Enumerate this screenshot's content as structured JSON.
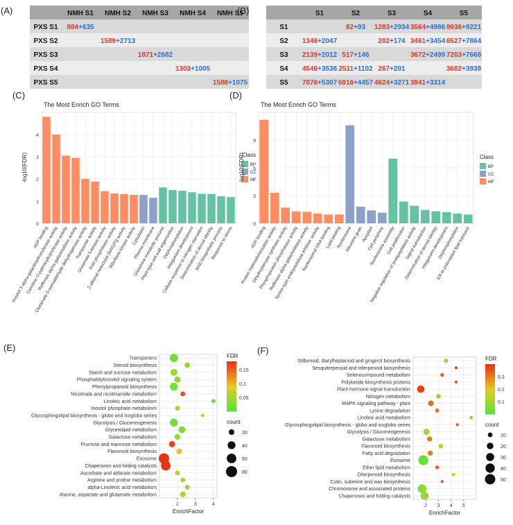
{
  "colors": {
    "red": "#e8352a",
    "blue": "#2a6fd6",
    "table_header": "#a6a6a6",
    "row_dark": "#d9d9d9",
    "row_light": "#ededed",
    "bp": "#66c2a5",
    "cc": "#8da0cb",
    "mf": "#fc8d62",
    "grid_bg": "#ffffff",
    "grid_line": "#ebebeb"
  },
  "chart_data": [
    {
      "panel": "(A)",
      "type": "table",
      "columns": [
        "",
        "NMH S1",
        "NMH S2",
        "NMH S3",
        "NMH S4",
        "NMH S5"
      ],
      "rows": [
        {
          "label": "PXS S1",
          "cells": [
            {
              "col": 1,
              "a": "884",
              "b": "635"
            }
          ]
        },
        {
          "label": "PXS S2",
          "cells": [
            {
              "col": 2,
              "a": "1589",
              "b": "2713"
            }
          ]
        },
        {
          "label": "PXS S3",
          "cells": [
            {
              "col": 3,
              "a": "1871",
              "b": "2682"
            }
          ]
        },
        {
          "label": "PXS S4",
          "cells": [
            {
              "col": 4,
              "a": "1303",
              "b": "1005"
            }
          ]
        },
        {
          "label": "PXS S5",
          "cells": [
            {
              "col": 5,
              "a": "1588",
              "b": "1075"
            }
          ]
        }
      ]
    },
    {
      "panel": "(B)",
      "type": "table",
      "columns": [
        "",
        "S1",
        "S2",
        "S3",
        "S4",
        "S5"
      ],
      "rows": [
        {
          "label": "S1",
          "cells": [
            {
              "col": 2,
              "a": "82",
              "b": "93"
            },
            {
              "col": 3,
              "a": "1283",
              "b": "2934"
            },
            {
              "col": 4,
              "a": "3564",
              "b": "4986"
            },
            {
              "col": 5,
              "a": "9936",
              "b": "9221"
            }
          ]
        },
        {
          "label": "S2",
          "cells": [
            {
              "col": 1,
              "a": "1346",
              "b": "2047"
            },
            {
              "col": 3,
              "a": "202",
              "b": "174"
            },
            {
              "col": 4,
              "a": "3461",
              "b": "3454"
            },
            {
              "col": 5,
              "a": "6527",
              "b": "7864"
            }
          ]
        },
        {
          "label": "S3",
          "cells": [
            {
              "col": 1,
              "a": "2139",
              "b": "2012"
            },
            {
              "col": 2,
              "a": "517",
              "b": "146"
            },
            {
              "col": 4,
              "a": "3672",
              "b": "2499"
            },
            {
              "col": 5,
              "a": "7203",
              "b": "7668"
            }
          ]
        },
        {
          "label": "S4",
          "cells": [
            {
              "col": 1,
              "a": "4546",
              "b": "3536"
            },
            {
              "col": 2,
              "a": "2511",
              "b": "1102"
            },
            {
              "col": 3,
              "a": "267",
              "b": "201"
            },
            {
              "col": 5,
              "a": "3682",
              "b": "3938"
            }
          ]
        },
        {
          "label": "S5",
          "cells": [
            {
              "col": 1,
              "a": "7876",
              "b": "5307"
            },
            {
              "col": 2,
              "a": "6916",
              "b": "4457"
            },
            {
              "col": 3,
              "a": "4624",
              "b": "3271"
            },
            {
              "col": 4,
              "a": "3941",
              "b": "3314"
            }
          ]
        }
      ]
    },
    {
      "panel": "(C)",
      "type": "bar",
      "title": "The Most Enrich GO Terms",
      "ylabel": "-log10(FDR)",
      "ylim": [
        0,
        5
      ],
      "yticks": [
        0,
        1,
        2,
        3,
        4
      ],
      "legend_title": "Class",
      "legend": [
        "BP",
        "CC",
        "MF"
      ],
      "categories": [
        "ADP binding",
        "Inositol 3-alpha-galactosyltransferase activity",
        "Carnitine O-palmitoyltransferase activity",
        "Raffinose alpha-galactosidase activity",
        "Glutamate-5-semialdehyde dehydrogenase activity",
        "Transporter activity",
        "Glutamate 5-kinase activity",
        "Acid phosphatase activity",
        "2-alkenal reductase [NAD(P)] activity",
        "Riboflavin kinase activity",
        "Cytoplasm",
        "Plasma membrane",
        "Glutamine metabolic process",
        "Plant-type cell wall organization",
        "Dephosphorylation",
        "Integument development",
        "Cellular response to nitrogen starvation",
        "Determination of dorsal identity",
        "NAD biosynthetic process",
        "Response to stress"
      ],
      "values": [
        4.8,
        4.0,
        3.05,
        2.95,
        2.0,
        1.88,
        1.45,
        1.35,
        1.32,
        1.28,
        1.28,
        1.15,
        1.62,
        1.5,
        1.47,
        1.4,
        1.33,
        1.32,
        1.22,
        1.18
      ],
      "classes": [
        "MF",
        "MF",
        "MF",
        "MF",
        "MF",
        "MF",
        "MF",
        "MF",
        "MF",
        "MF",
        "CC",
        "CC",
        "BP",
        "BP",
        "BP",
        "BP",
        "BP",
        "BP",
        "BP",
        "BP"
      ]
    },
    {
      "panel": "(D)",
      "type": "bar",
      "title": "The Most Enrich GO Terms",
      "ylabel": "-log10(FDR)",
      "ylim": [
        0,
        12
      ],
      "yticks": [
        0,
        3,
        6,
        9
      ],
      "legend_title": "Class",
      "legend": [
        "BP",
        "CC",
        "MF"
      ],
      "categories": [
        "ADP binding",
        "Protein heterodimerization activity",
        "Dihydropteroate synthase activity",
        "Phosphoprotein phosphatase activity",
        "Raffinose alpha-galactosidase activity",
        "Serine-type endopeptidase inhibitor activity",
        "Nucleosomal DNA binding",
        "Lipid binding",
        "Nucleosome",
        "Aleurone grain",
        "Apoplast",
        "Cell periphery",
        "Nucleosome assembly",
        "Cell proliferation",
        "Negative regulation of endopeptidase activity",
        "Signal transduction",
        "Determination of dorsal identity",
        "Integument development",
        "Dephosphorylation",
        "ER to chloroplast lipid transport"
      ],
      "values": [
        11.2,
        3.3,
        1.7,
        1.3,
        1.25,
        1.05,
        0.95,
        0.95,
        10.6,
        1.8,
        1.4,
        1.15,
        7.0,
        2.35,
        1.9,
        1.45,
        1.3,
        1.2,
        1.05,
        0.95
      ],
      "classes": [
        "MF",
        "MF",
        "MF",
        "MF",
        "MF",
        "MF",
        "MF",
        "MF",
        "CC",
        "CC",
        "CC",
        "CC",
        "BP",
        "BP",
        "BP",
        "BP",
        "BP",
        "BP",
        "BP",
        "BP"
      ]
    },
    {
      "panel": "(E)",
      "type": "scatter",
      "xlabel": "EnrichFactor",
      "xlim": [
        1,
        4.2
      ],
      "xticks": [
        2,
        3,
        4
      ],
      "fdr_title": "FDR",
      "fdr_range": [
        0,
        0.18
      ],
      "fdr_ticks": [
        0.05,
        0.1,
        0.15
      ],
      "count_title": "count",
      "count_legend": [
        20,
        40,
        60,
        80
      ],
      "categories": [
        "Transporters",
        "Steroid biosynthesis",
        "Starch and sucrose metabolism",
        "Phosphatidylinositol signaling system",
        "Phenylpropanoid biosynthesis",
        "Nicotinate and nicotinamide metabolism",
        "Linoleic acid metabolism",
        "Inositol phosphate metabolism",
        "Glycosphingolipid biosynthesis - globo and isoglobo series",
        "Glycolysis / Gluconeogenesis",
        "Glycerolipid metabolism",
        "Galactose metabolism",
        "Fructose and mannose metabolism",
        "Flavonoid biosynthesis",
        "Exosome",
        "Chaperones and folding catalysts",
        "Ascorbate and aldarate metabolism",
        "Arginine and proline metabolism",
        "alpha-Linolenic acid metabolism",
        "Alanine, aspartate and glutamate metabolism"
      ],
      "x": [
        1.8,
        2.55,
        1.8,
        2.0,
        1.8,
        2.3,
        4.0,
        2.0,
        3.4,
        1.8,
        2.25,
        2.0,
        1.7,
        2.1,
        1.25,
        1.35,
        2.0,
        2.3,
        2.55,
        2.3
      ],
      "fdr": [
        0.02,
        0.04,
        0.05,
        0.04,
        0.02,
        0.16,
        0.01,
        0.06,
        0.07,
        0.02,
        0.03,
        0.04,
        0.17,
        0.08,
        0.18,
        0.18,
        0.07,
        0.06,
        0.04,
        0.06
      ],
      "count": [
        45,
        20,
        30,
        25,
        40,
        15,
        10,
        15,
        8,
        40,
        30,
        20,
        25,
        20,
        70,
        60,
        15,
        15,
        15,
        20
      ]
    },
    {
      "panel": "(F)",
      "type": "scatter",
      "xlabel": "EnrichFactor",
      "xlim": [
        1,
        6
      ],
      "xticks": [
        2,
        3,
        4,
        5
      ],
      "fdr_title": "FDR",
      "fdr_range": [
        0,
        0.4
      ],
      "fdr_ticks": [
        0.1,
        0.2,
        0.3
      ],
      "count_title": "count",
      "count_legend": [
        10,
        20,
        30,
        40,
        50
      ],
      "categories": [
        "Stilbenoid, diarylheptanoid and gingerol biosynthesis",
        "Sesquiterpenoid and triterpenoid biosynthesis",
        "Selenocompound metabolism",
        "Polyketide biosynthesis proteins",
        "Plant hormone signal transduction",
        "Nitrogen metabolism",
        "MAPK signaling pathway - plant",
        "Lysine degradation",
        "Linoleic acid metabolism",
        "Glycosphingolipid biosynthesis - globo and isoglobo series",
        "Glycolysis / Gluconeogenesis",
        "Galactose metabolism",
        "Flavonoid biosynthesis",
        "Fatty acid degradation",
        "Exosome",
        "Ether lipid metabolism",
        "Diterpenoid biosynthesis",
        "Cutin, suberine and wax biosynthesis",
        "Chromosome and associated proteins",
        "Chaperones and folding catalysts"
      ],
      "x": [
        3.6,
        4.4,
        3.3,
        4.4,
        1.6,
        3.0,
        2.4,
        2.9,
        5.6,
        4.5,
        2.05,
        2.3,
        3.2,
        2.35,
        1.8,
        2.9,
        4.2,
        3.3,
        1.7,
        1.9
      ],
      "fdr": [
        0.1,
        0.38,
        0.35,
        0.36,
        0.38,
        0.1,
        0.32,
        0.3,
        0.05,
        0.35,
        0.12,
        0.3,
        0.15,
        0.3,
        0.03,
        0.35,
        0.2,
        0.36,
        0.08,
        0.1
      ],
      "count": [
        8,
        4,
        6,
        4,
        25,
        10,
        15,
        8,
        5,
        4,
        18,
        12,
        10,
        12,
        45,
        6,
        6,
        4,
        35,
        30
      ]
    }
  ]
}
